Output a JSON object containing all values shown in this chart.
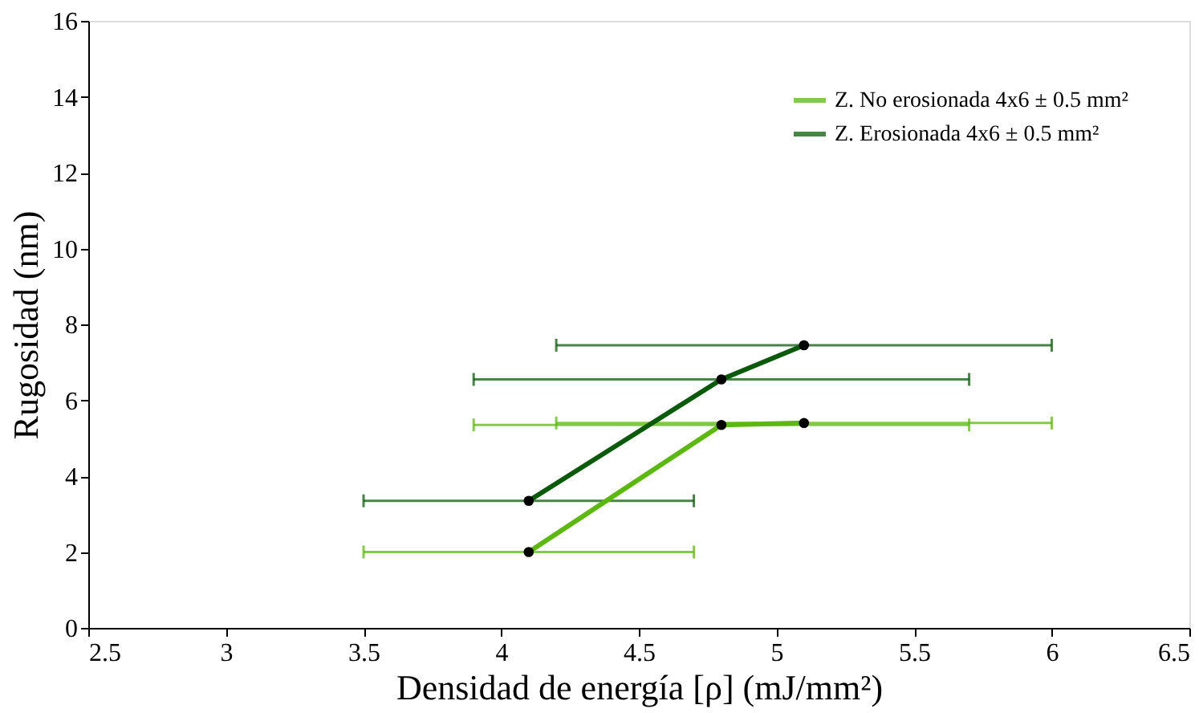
{
  "chart_data": {
    "type": "line",
    "xlabel": "Densidad de energía [ρ] (mJ/mm²)",
    "ylabel": "Rugosidad (nm)",
    "xlim": [
      2.5,
      6.5
    ],
    "xticks": [
      2.5,
      3,
      3.5,
      4,
      4.5,
      5,
      5.5,
      6,
      6.5
    ],
    "ylim": [
      0,
      16
    ],
    "yticks": [
      0,
      2,
      4,
      6,
      8,
      10,
      12,
      14,
      16
    ],
    "grid": false,
    "legend": "top right",
    "marker": "circle",
    "line_style": "solid",
    "series": [
      {
        "name": "Z. No erosionada 4x6 ± 0.5 mm²",
        "color": "#5cb811",
        "x": [
          4.1,
          4.8,
          5.1
        ],
        "values": [
          2.0,
          5.35,
          5.4
        ],
        "xerrors": [
          [
            3.5,
            4.7
          ],
          [
            3.9,
            5.7
          ],
          [
            4.2,
            6.0
          ]
        ]
      },
      {
        "name": "Z. Erosionada 4x6 ± 0.5 mm²",
        "color": "#0b5a0b",
        "x": [
          4.1,
          4.8,
          5.1
        ],
        "values": [
          3.35,
          6.55,
          7.45
        ],
        "xerrors": [
          [
            3.5,
            4.7
          ],
          [
            3.9,
            5.7
          ],
          [
            4.2,
            6.0
          ]
        ]
      }
    ]
  }
}
